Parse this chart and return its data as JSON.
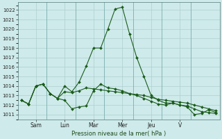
{
  "background_color": "#ceeaea",
  "grid_color": "#a8c8c8",
  "line_color": "#1a5c1a",
  "marker_color": "#1a5c1a",
  "xlabel": "Pression niveau de la mer( hPa )",
  "ylim": [
    1010.5,
    1022.8
  ],
  "yticks": [
    1011,
    1012,
    1013,
    1014,
    1015,
    1016,
    1017,
    1018,
    1019,
    1020,
    1021,
    1022
  ],
  "day_labels": [
    "Sam",
    "Lun",
    "Mar",
    "Mer",
    "Jeu",
    "V"
  ],
  "figsize": [
    3.2,
    2.0
  ],
  "dpi": 100,
  "series1": [
    1012.5,
    1012.1,
    1014.0,
    1014.2,
    1013.2,
    1012.7,
    1014.0,
    1013.4,
    1014.4,
    1016.1,
    1018.0,
    1018.0,
    1020.0,
    1022.1,
    1022.3,
    1019.5,
    1017.0,
    1015.0,
    1013.0,
    1012.5,
    1012.2,
    1012.2,
    1012.0,
    1011.8,
    1011.0,
    1011.1,
    1011.5,
    1011.2
  ],
  "series2": [
    1012.5,
    1012.1,
    1014.0,
    1014.2,
    1013.2,
    1012.7,
    1013.4,
    1013.3,
    1013.5,
    1013.8,
    1013.7,
    1013.6,
    1013.5,
    1013.4,
    1013.3,
    1013.2,
    1013.1,
    1013.0,
    1012.8,
    1012.6,
    1012.5,
    1012.4,
    1012.3,
    1012.2,
    1012.0,
    1011.8,
    1011.6,
    1011.4
  ],
  "series3": [
    1012.5,
    1012.1,
    1014.0,
    1014.2,
    1013.2,
    1012.7,
    1012.5,
    1011.6,
    1011.8,
    1011.9,
    1013.5,
    1014.2,
    1013.8,
    1013.7,
    1013.5,
    1013.2,
    1013.0,
    1012.7,
    1012.4,
    1012.1,
    1012.0,
    1012.2,
    1012.0,
    1011.9,
    1011.6,
    1011.3,
    1011.2,
    1011.1
  ],
  "n_days": 7,
  "pts_per_day": 4
}
